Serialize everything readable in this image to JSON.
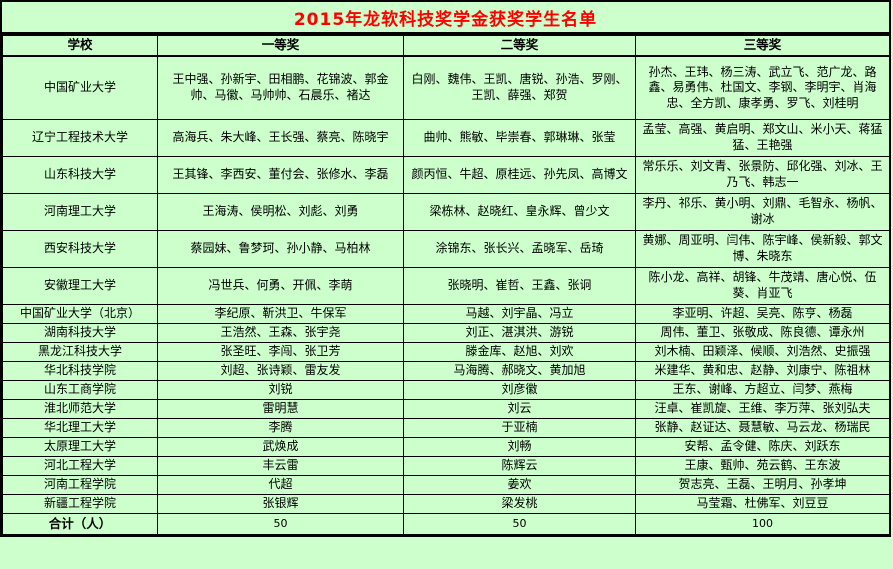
{
  "title": "2015年龙软科技奖学金获奖学生名单",
  "colors": {
    "page_background": "#ccffcc",
    "title_text": "#ff0000",
    "body_text": "#000000",
    "border": "#000000"
  },
  "table": {
    "headers": [
      "学校",
      "一等奖",
      "二等奖",
      "三等奖"
    ],
    "rows": [
      {
        "school": "中国矿业大学",
        "first": "王中强、孙新宇、田相鹏、花锦波、郭金帅、马徽、马帅帅、石晨乐、褚达",
        "second": "白刚、魏伟、王凯、唐锐、孙浩、罗刚、王凯、薛强、郑贺",
        "third": "孙杰、王玮、杨三涛、武立飞、范广龙、路鑫、易勇伟、杜国文、李钢、李明宇、肖海忠、全方凯、康孝勇、罗飞、刘桂明"
      },
      {
        "school": "辽宁工程技术大学",
        "first": "高海兵、朱大峰、王长强、蔡亮、陈晓宇",
        "second": "曲帅、熊敏、毕崇春、郭琳琳、张莹",
        "third": "孟莹、高强、黄启明、郑文山、米小天、蒋猛猛、王艳强"
      },
      {
        "school": "山东科技大学",
        "first": "王其锋、李西安、董付会、张修水、李磊",
        "second": "颜丙恒、牛超、原桂远、孙先凤、高博文",
        "third": "常乐乐、刘文青、张景防、邱化强、刘冰、王乃飞、韩志一"
      },
      {
        "school": "河南理工大学",
        "first": "王海涛、侯明松、刘彪、刘勇",
        "second": "梁栋林、赵晓红、皇永辉、曾少文",
        "third": "李丹、祁乐、黄小明、刘鼎、毛智永、杨帆、谢冰"
      },
      {
        "school": "西安科技大学",
        "first": "蔡园妹、鲁梦珂、孙小静、马柏林",
        "second": "涂锦东、张长兴、孟晓军、岳琦",
        "third": "黄娜、周亚明、闫伟、陈宇峰、侯新毅、郭文博、朱晓东"
      },
      {
        "school": "安徽理工大学",
        "first": "冯世兵、何勇、开佩、李萌",
        "second": "张晓明、崔哲、王鑫、张诇",
        "third": "陈小龙、高祥、胡锋、牛茂靖、唐心悦、伍葵、肖亚飞"
      },
      {
        "school": "中国矿业大学（北京）",
        "first": "李纪原、靳洪卫、牛保军",
        "second": "马越、刘宇晶、冯立",
        "third": "李亚明、许超、吴亮、陈亨、杨磊"
      },
      {
        "school": "湖南科技大学",
        "first": "王浩然、王森、张宇尧",
        "second": "刘正、湛淇洪、游锐",
        "third": "周伟、董卫、张敬成、陈良德、谭永州"
      },
      {
        "school": "黑龙江科技大学",
        "first": "张圣旺、李闯、张卫芳",
        "second": "滕金库、赵旭、刘欢",
        "third": "刘木楠、田颖泽、候顺、刘浩然、史振强"
      },
      {
        "school": "华北科技学院",
        "first": "刘超、张诗颖、雷友发",
        "second": "马海腾、郝晓文、黄加旭",
        "third": "米建华、黄和忠、赵静、刘康宁、陈祖林"
      },
      {
        "school": "山东工商学院",
        "first": "刘锐",
        "second": "刘彦徽",
        "third": "王东、谢峰、方超立、闫梦、燕梅"
      },
      {
        "school": "淮北师范大学",
        "first": "雷明慧",
        "second": "刘云",
        "third": "汪卓、崔凯旋、王维、李万萍、张刘弘夫"
      },
      {
        "school": "华北理工大学",
        "first": "李腾",
        "second": "于亚楠",
        "third": "张静、赵证达、聂慧敏、马云龙、杨瑞民"
      },
      {
        "school": "太原理工大学",
        "first": "武焕成",
        "second": "刘畅",
        "third": "安帮、孟令健、陈庆、刘跃东"
      },
      {
        "school": "河北工程大学",
        "first": "丰云雷",
        "second": "陈辉云",
        "third": "王康、甄帅、苑云鹤、王东波"
      },
      {
        "school": "河南工程学院",
        "first": "代超",
        "second": "姜欢",
        "third": "贺志亮、王磊、王明月、孙孝坤"
      },
      {
        "school": "新疆工程学院",
        "first": "张银辉",
        "second": "梁发桃",
        "third": "马莹霜、杜佛军、刘豆豆"
      }
    ],
    "total_row": {
      "label": "合计（人）",
      "first": "50",
      "second": "50",
      "third": "100"
    }
  }
}
